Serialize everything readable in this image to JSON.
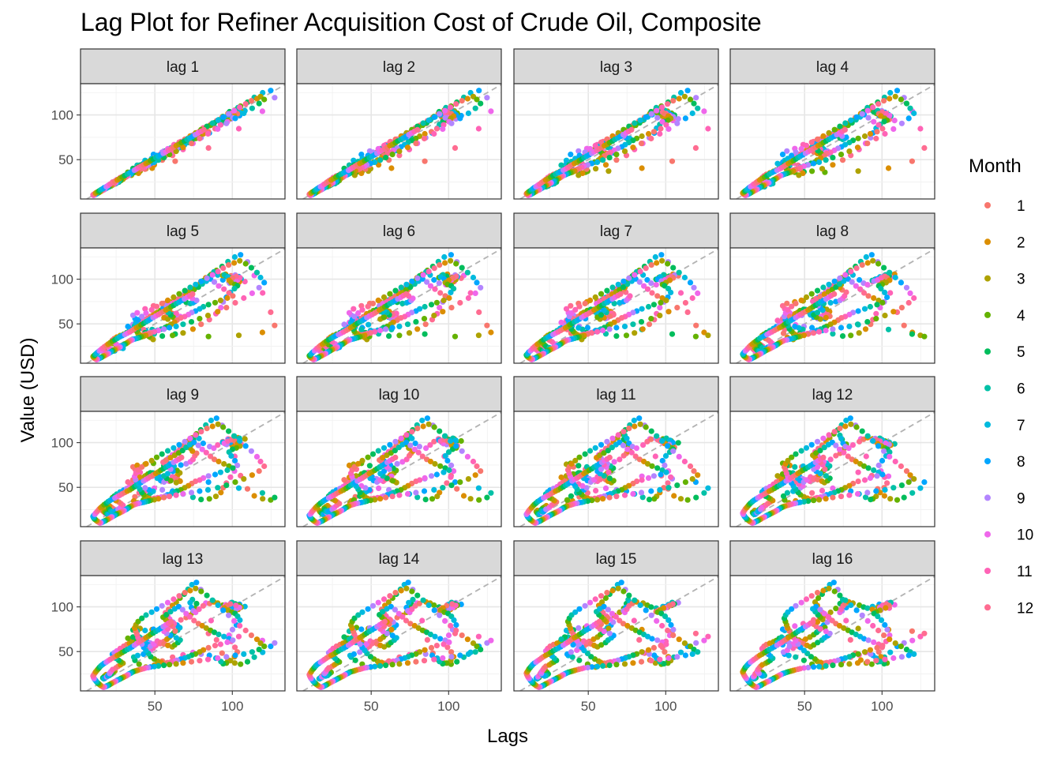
{
  "chart_data": {
    "type": "scatter",
    "title": "Lag Plot for Refiner Acquisition Cost of Crude Oil, Composite",
    "xlabel": "Lags",
    "ylabel": "Value (USD)",
    "xticks": [
      50,
      100
    ],
    "yticks": [
      50,
      100
    ],
    "xlim": [
      2,
      134
    ],
    "ylim": [
      6,
      135
    ],
    "grid": true,
    "reference_line": "y = x (dashed grey)",
    "panels": [
      "lag 1",
      "lag 2",
      "lag 3",
      "lag 4",
      "lag 5",
      "lag 6",
      "lag 7",
      "lag 8",
      "lag 9",
      "lag 10",
      "lag 11",
      "lag 12",
      "lag 13",
      "lag 14",
      "lag 15",
      "lag 16"
    ],
    "lags": [
      1,
      2,
      3,
      4,
      5,
      6,
      7,
      8,
      9,
      10,
      11,
      12,
      13,
      14,
      15,
      16
    ],
    "legend": {
      "title": "Month",
      "placement": "right",
      "entries": [
        "1",
        "2",
        "3",
        "4",
        "5",
        "6",
        "7",
        "8",
        "9",
        "10",
        "11",
        "12"
      ],
      "colors": [
        "#F8766D",
        "#DB8E00",
        "#AEA200",
        "#64B200",
        "#00BD5C",
        "#00C1A7",
        "#00BADE",
        "#00A6FF",
        "#B385FF",
        "#EF67EB",
        "#FF63B6",
        "#FF6C91"
      ]
    },
    "series_monthly_usd": [
      18.5,
      17.8,
      17.2,
      16.4,
      16.9,
      17.5,
      18.1,
      18.9,
      19.4,
      20.3,
      21.2,
      22.6,
      23.4,
      24.1,
      22.9,
      21.8,
      20.6,
      19.7,
      19.9,
      20.8,
      21.6,
      22.7,
      24.9,
      26.3,
      27.8,
      29.4,
      28.1,
      26.7,
      24.9,
      23.2,
      22.6,
      23.8,
      25.4,
      27.6,
      29.9,
      31.8,
      33.6,
      35.2,
      36.9,
      38.3,
      40.1,
      42.4,
      44.8,
      46.9,
      48.7,
      50.6,
      53.4,
      55.9,
      57.8,
      59.3,
      60.9,
      62.4,
      64.7,
      66.1,
      64.3,
      61.7,
      59.6,
      58.2,
      56.8,
      58.9,
      61.3,
      63.8,
      66.2,
      68.9,
      71.4,
      73.9,
      76.8,
      79.6,
      82.9,
      86.3,
      89.8,
      93.4,
      97.2,
      101.6,
      105.3,
      109.8,
      114.2,
      119.6,
      124.8,
      127.3,
      119.4,
      104.2,
      84.6,
      63.1,
      48.2,
      40.5,
      37.2,
      35.9,
      38.6,
      43.7,
      49.1,
      55.8,
      59.6,
      62.4,
      66.8,
      70.2,
      72.9,
      74.6,
      75.8,
      76.9,
      74.2,
      72.8,
      73.6,
      74.9,
      76.3,
      78.5,
      81.2,
      85.4,
      88.1,
      90.6,
      93.9,
      98.2,
      103.6,
      108.1,
      104.7,
      99.2,
      95.6,
      93.8,
      97.4,
      101.2,
      103.8,
      105.6,
      104.2,
      101.9,
      99.8,
      98.6,
      100.4,
      102.8,
      104.6,
      102.3,
      98.7,
      96.4,
      94.8,
      97.2,
      99.6,
      101.8,
      103.4,
      104.9,
      102.6,
      100.1,
      97.9,
      99.3,
      101.7,
      103.2,
      101.4,
      98.8,
      96.2,
      94.1,
      92.6,
      89.4,
      85.2,
      79.8,
      74.6,
      68.2,
      61.4,
      54.8,
      49.6,
      44.2,
      39.8,
      37.1,
      36.4,
      38.9,
      42.6,
      45.8,
      47.2,
      48.9,
      46.3,
      43.7,
      39.4,
      34.8,
      32.6,
      35.9,
      40.2,
      43.8,
      45.6,
      47.1,
      49.4,
      51.6,
      53.8,
      55.9,
      58.4,
      61.2,
      62.8,
      64.9,
      66.3,
      63.8,
      60.2,
      57.6,
      55.9,
      58.3,
      61.7,
      60.2,
      58.6,
      56.9,
      55.3,
      57.4,
      60.1,
      62.8,
      65.4,
      67.9,
      70.2,
      72.6,
      75.3,
      78.1,
      80.6,
      83.2,
      85.9,
      88.4,
      91.2,
      94.6,
      97.8,
      100.3,
      96.8,
      92.4,
      88.9,
      84.6,
      81.3,
      78.9,
      76.2,
      73.8,
      71.6,
      69.2,
      66.8,
      64.3,
      62.7,
      60.4,
      58.1,
      56.7,
      54.2,
      51.8,
      49.6,
      47.3,
      45.9,
      44.2,
      42.8,
      41.6,
      40.3,
      39.1,
      38.4,
      37.6,
      36.9,
      37.8,
      39.2,
      41.6,
      44.3,
      47.9,
      51.2,
      54.6,
      58.3,
      62.1,
      65.7,
      69.4,
      72.8,
      76.3,
      79.9,
      83.6,
      87.2,
      90.8,
      94.1,
      97.6,
      101.2,
      104.8,
      108.6,
      112.3,
      115.9,
      118.2,
      120.6,
      117.3,
      112.8,
      107.4,
      101.9,
      96.2,
      90.6,
      84.3,
      78.9,
      73.6,
      68.2,
      63.7,
      59.4,
      55.8,
      52.3,
      49.6,
      47.2,
      45.8,
      44.1,
      42.7,
      41.2,
      39.8,
      38.6,
      37.2,
      36.1,
      35.4,
      34.6,
      33.9,
      33.2,
      32.8,
      32.1,
      31.6,
      30.9,
      30.2,
      29.6,
      28.9,
      28.2,
      27.6,
      26.9,
      26.1,
      25.4,
      24.8,
      24.1,
      23.6,
      22.9,
      22.3,
      21.8,
      21.2,
      20.6,
      20.1,
      19.4,
      18.8,
      18.2,
      17.6,
      16.9,
      16.3,
      15.8,
      15.2,
      14.6,
      14.1,
      13.5,
      12.9,
      12.4,
      11.9,
      11.3,
      10.8,
      10.4,
      10.1,
      10.6,
      11.2,
      11.8,
      12.6,
      13.4,
      14.2,
      15.1,
      16.2,
      17.3,
      18.6,
      19.8,
      21.1,
      22.6,
      24.2,
      25.8,
      27.3,
      28.9,
      30.6,
      32.2,
      33.9,
      35.4,
      36.8,
      38.2,
      39.6,
      41.1,
      42.7,
      44.3,
      45.8,
      47.2,
      48.9,
      50.6,
      52.3,
      53.8,
      55.4,
      57.1,
      58.8,
      60.4,
      62.1,
      63.8,
      65.6,
      67.2,
      69.1,
      70.8,
      72.6,
      74.3,
      76.1,
      77.9,
      79.8,
      81.6,
      83.4
    ]
  }
}
